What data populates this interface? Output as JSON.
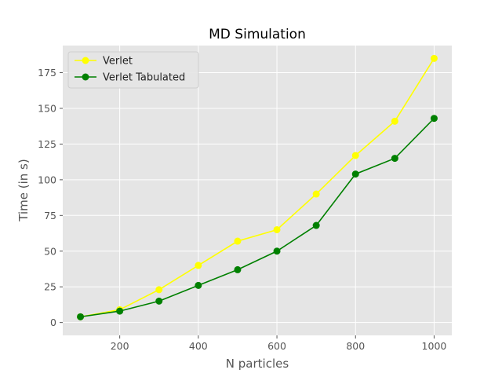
{
  "chart_data": {
    "type": "line",
    "title": "MD Simulation",
    "xlabel": "N particles",
    "ylabel": "Time (in s)",
    "x": [
      100,
      200,
      300,
      400,
      500,
      600,
      700,
      800,
      900,
      1000
    ],
    "xlim": [
      55,
      1045
    ],
    "ylim": [
      -9,
      194
    ],
    "xticks": [
      200,
      400,
      600,
      800,
      1000
    ],
    "yticks": [
      0,
      25,
      50,
      75,
      100,
      125,
      150,
      175
    ],
    "grid": true,
    "legend_position": "top-left",
    "series": [
      {
        "name": "Verlet",
        "color": "#ffff00",
        "marker": "circle",
        "values": [
          4,
          9,
          23,
          40,
          57,
          65,
          90,
          117,
          141,
          185
        ]
      },
      {
        "name": "Verlet Tabulated",
        "color": "#008000",
        "marker": "circle",
        "values": [
          4,
          8,
          15,
          26,
          37,
          50,
          68,
          104,
          115,
          143
        ]
      }
    ],
    "background": "#e5e5e5",
    "grid_color": "#ffffff"
  }
}
